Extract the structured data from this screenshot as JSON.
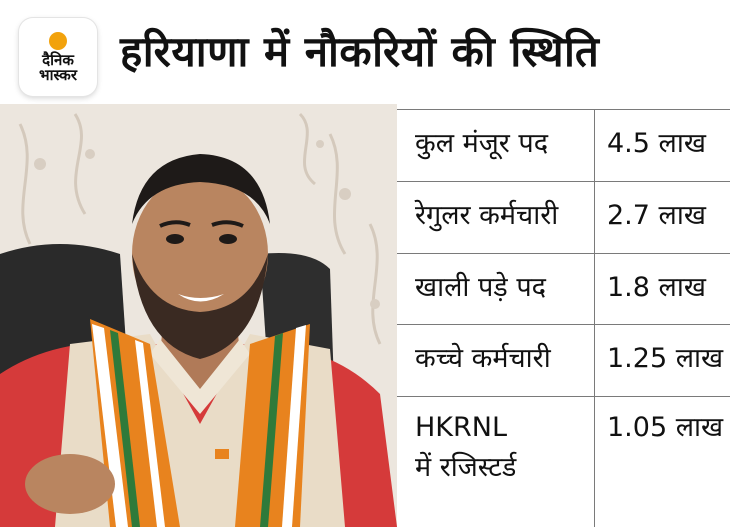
{
  "logo": {
    "line1": "दैनिक",
    "line2": "भास्कर"
  },
  "title": "हरियाणा में नौकरियों की स्थिति",
  "table": {
    "rows": [
      {
        "label": "कुल मंजूर पद",
        "value": "4.5 लाख"
      },
      {
        "label": "रेगुलर कर्मचारी",
        "value": "2.7 लाख"
      },
      {
        "label": "खाली पड़े पद",
        "value": "1.8 लाख"
      },
      {
        "label": "कच्चे कर्मचारी",
        "value": "1.25 लाख"
      },
      {
        "label": "HKRNL",
        "label2": "में रजिस्टर्ड",
        "value": "1.05 लाख"
      }
    ]
  },
  "colors": {
    "logo_sun": "#f2a20c",
    "text": "#111111",
    "rule": "#7a7a7a"
  }
}
